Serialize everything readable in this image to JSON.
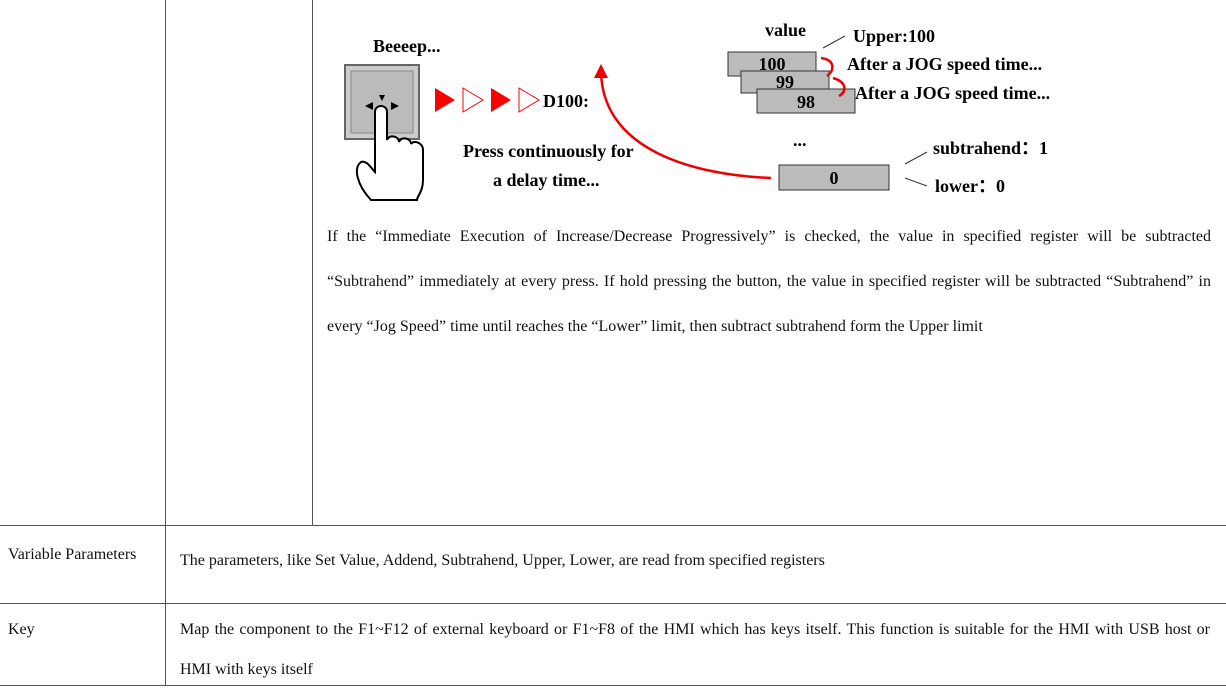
{
  "diagram": {
    "beep": "Beeeep...",
    "register": "D100:",
    "value_title": "value",
    "upper": "Upper:100",
    "boxes": [
      "100",
      "99",
      "98"
    ],
    "jog_notes": [
      "After a JOG speed time...",
      "After a JOG speed time..."
    ],
    "ellipsis": "...",
    "subtrahend": "subtrahend：1",
    "last_box": "0",
    "lower": "lower：0",
    "press_note": [
      "Press continuously for",
      "a delay time..."
    ]
  },
  "description": "If the “Immediate Execution of Increase/Decrease Progressively” is checked, the value in specified register will be subtracted “Subtrahend” immediately at every press. If hold pressing the button, the value in specified register will be subtracted “Subtrahend” in every “Jog Speed” time until reaches the “Lower” limit, then subtract subtrahend form the Upper limit",
  "table": {
    "rows": [
      [
        "Variable Parameters",
        "The parameters, like Set Value, Addend, Subtrahend, Upper, Lower, are read from specified registers"
      ],
      [
        "Key",
        "Map the component to the F1~F12 of external keyboard or F1~F8 of the HMI which has keys itself. This function is suitable for the HMI with USB host or HMI with keys itself"
      ]
    ]
  }
}
